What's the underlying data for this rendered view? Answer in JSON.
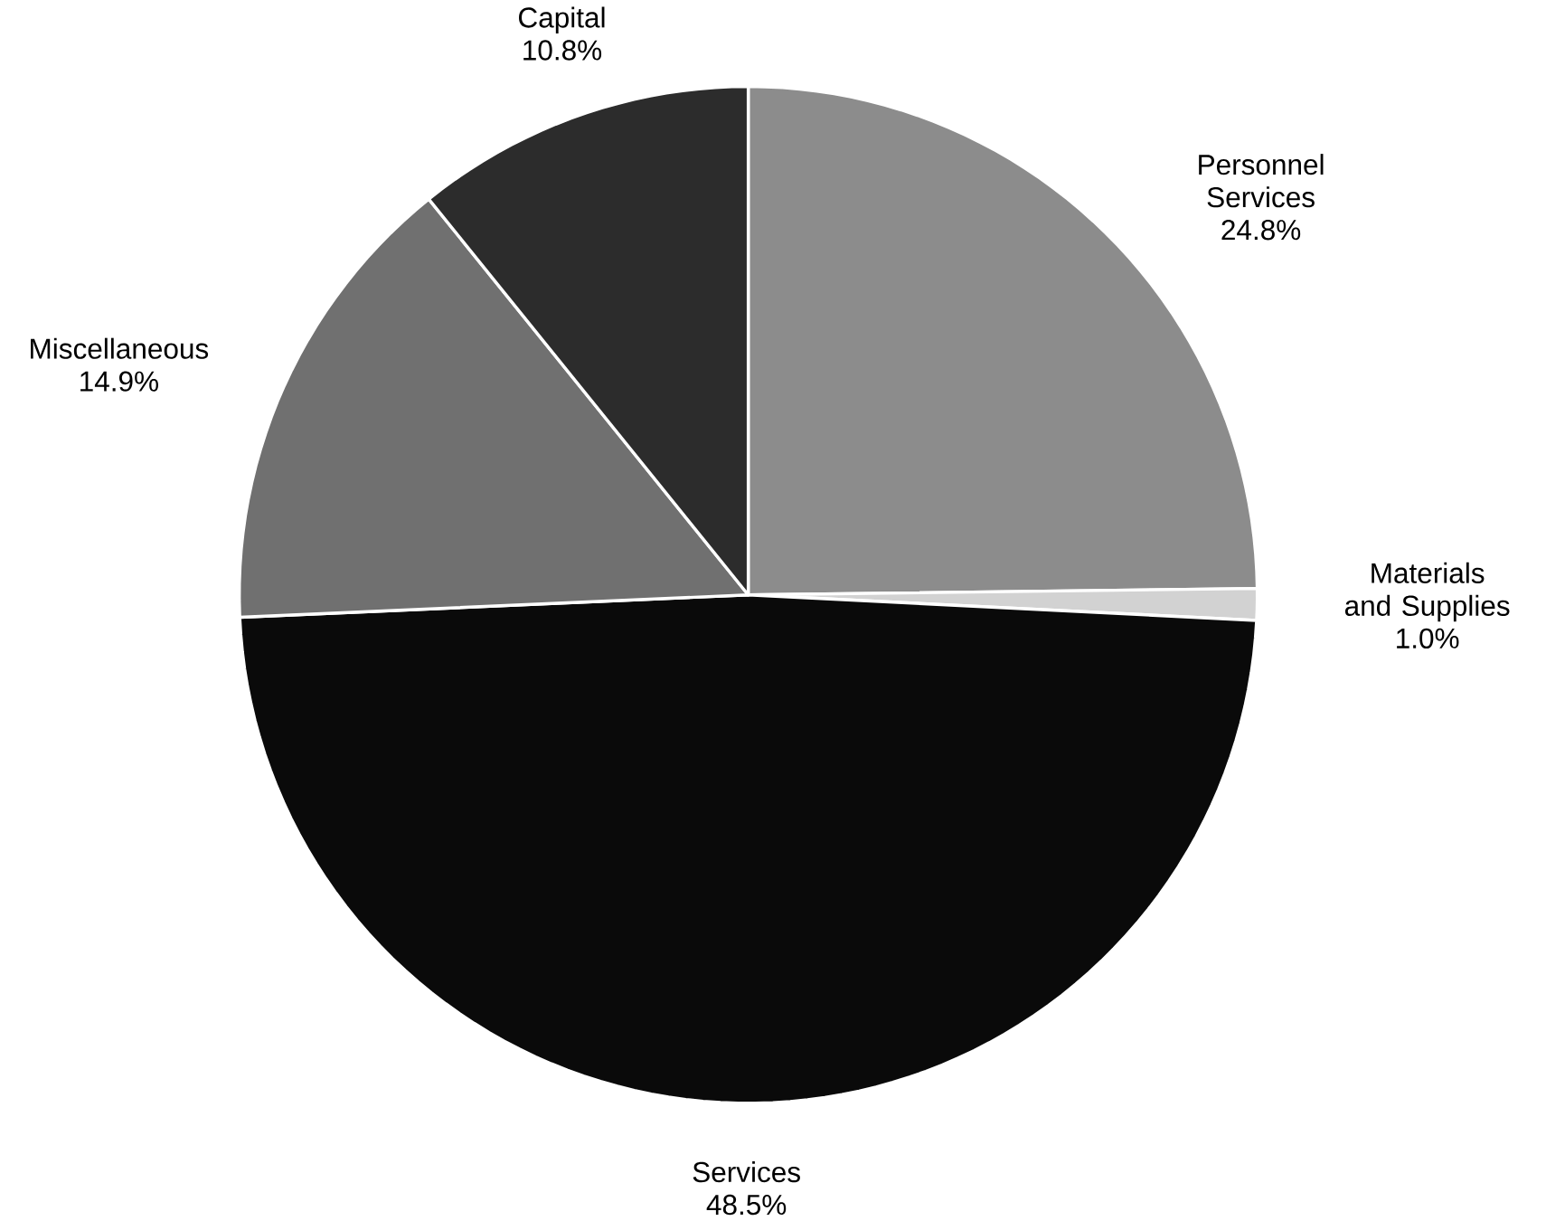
{
  "chart_data": {
    "type": "pie",
    "categories": [
      "Personnel Services",
      "Materials and Supplies",
      "Services",
      "Miscellaneous",
      "Capital"
    ],
    "values": [
      24.8,
      1.0,
      48.5,
      14.9,
      10.8
    ],
    "value_labels": [
      "24.8%",
      "1.0%",
      "48.5%",
      "14.9%",
      "10.8%"
    ],
    "colors": [
      "#8c8c8c",
      "#d2d2d2",
      "#0a0a0a",
      "#707070",
      "#2c2c2c"
    ]
  }
}
